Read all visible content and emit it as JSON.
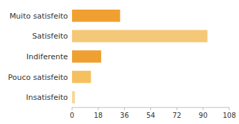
{
  "chart_data": {
    "type": "bar",
    "orientation": "horizontal",
    "categories": [
      "Muito satisfeito",
      "Satisfeito",
      "Indiferente",
      "Pouco satisfeito",
      "Insatisfeito"
    ],
    "values": [
      33,
      93,
      20,
      13,
      2
    ],
    "colors": [
      "#f0a030",
      "#f5c878",
      "#f0a030",
      "#f5c060",
      "#f5d898"
    ],
    "xlim": [
      0,
      108
    ],
    "xticks": [
      0,
      18,
      36,
      54,
      72,
      90,
      108
    ],
    "grid": false
  }
}
